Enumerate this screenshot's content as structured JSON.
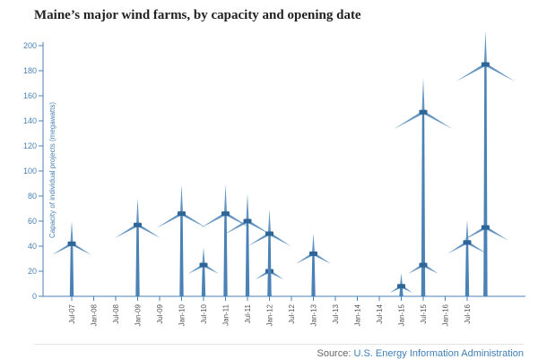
{
  "chart_data": {
    "type": "scatter",
    "title": "Maine’s major wind farms, by capacity and opening date",
    "ylabel": "Capacity of individual projects (megawatts)",
    "xlabel": "",
    "ylim": [
      0,
      200
    ],
    "y_ticks": [
      0,
      20,
      40,
      60,
      80,
      100,
      120,
      140,
      160,
      180,
      200
    ],
    "x_ticks": [
      "Jul-07",
      "Jan-08",
      "Jul-08",
      "Jan-09",
      "Jul-09",
      "Jan-10",
      "Jul-10",
      "Jan-11",
      "Jul-11",
      "Jan-12",
      "Jul-12",
      "Jan-13",
      "Jul-13",
      "Jan-14",
      "Jul-14",
      "Jan-15",
      "Jul-15",
      "Jan-16",
      "Jul-16"
    ],
    "grid": false,
    "marker": "wind-turbine",
    "series": [
      {
        "x": [
          "Jul-07",
          "Jan-09",
          "Jan-10",
          "Jul-10",
          "Jan-11",
          "Jul-11",
          "Jan-12",
          "Jan-12",
          "Jan-13",
          "Jan-15",
          "Jul-15",
          "Jul-15",
          "Jul-16",
          "Dec-16",
          "Dec-16"
        ],
        "values": [
          42,
          57,
          66,
          25,
          66,
          60,
          20,
          50,
          34,
          8,
          147,
          25,
          43,
          185,
          55
        ]
      }
    ],
    "color": "#4a82b5"
  },
  "source": {
    "label": "Source:",
    "link_text": "U.S. Energy Information Administration"
  }
}
